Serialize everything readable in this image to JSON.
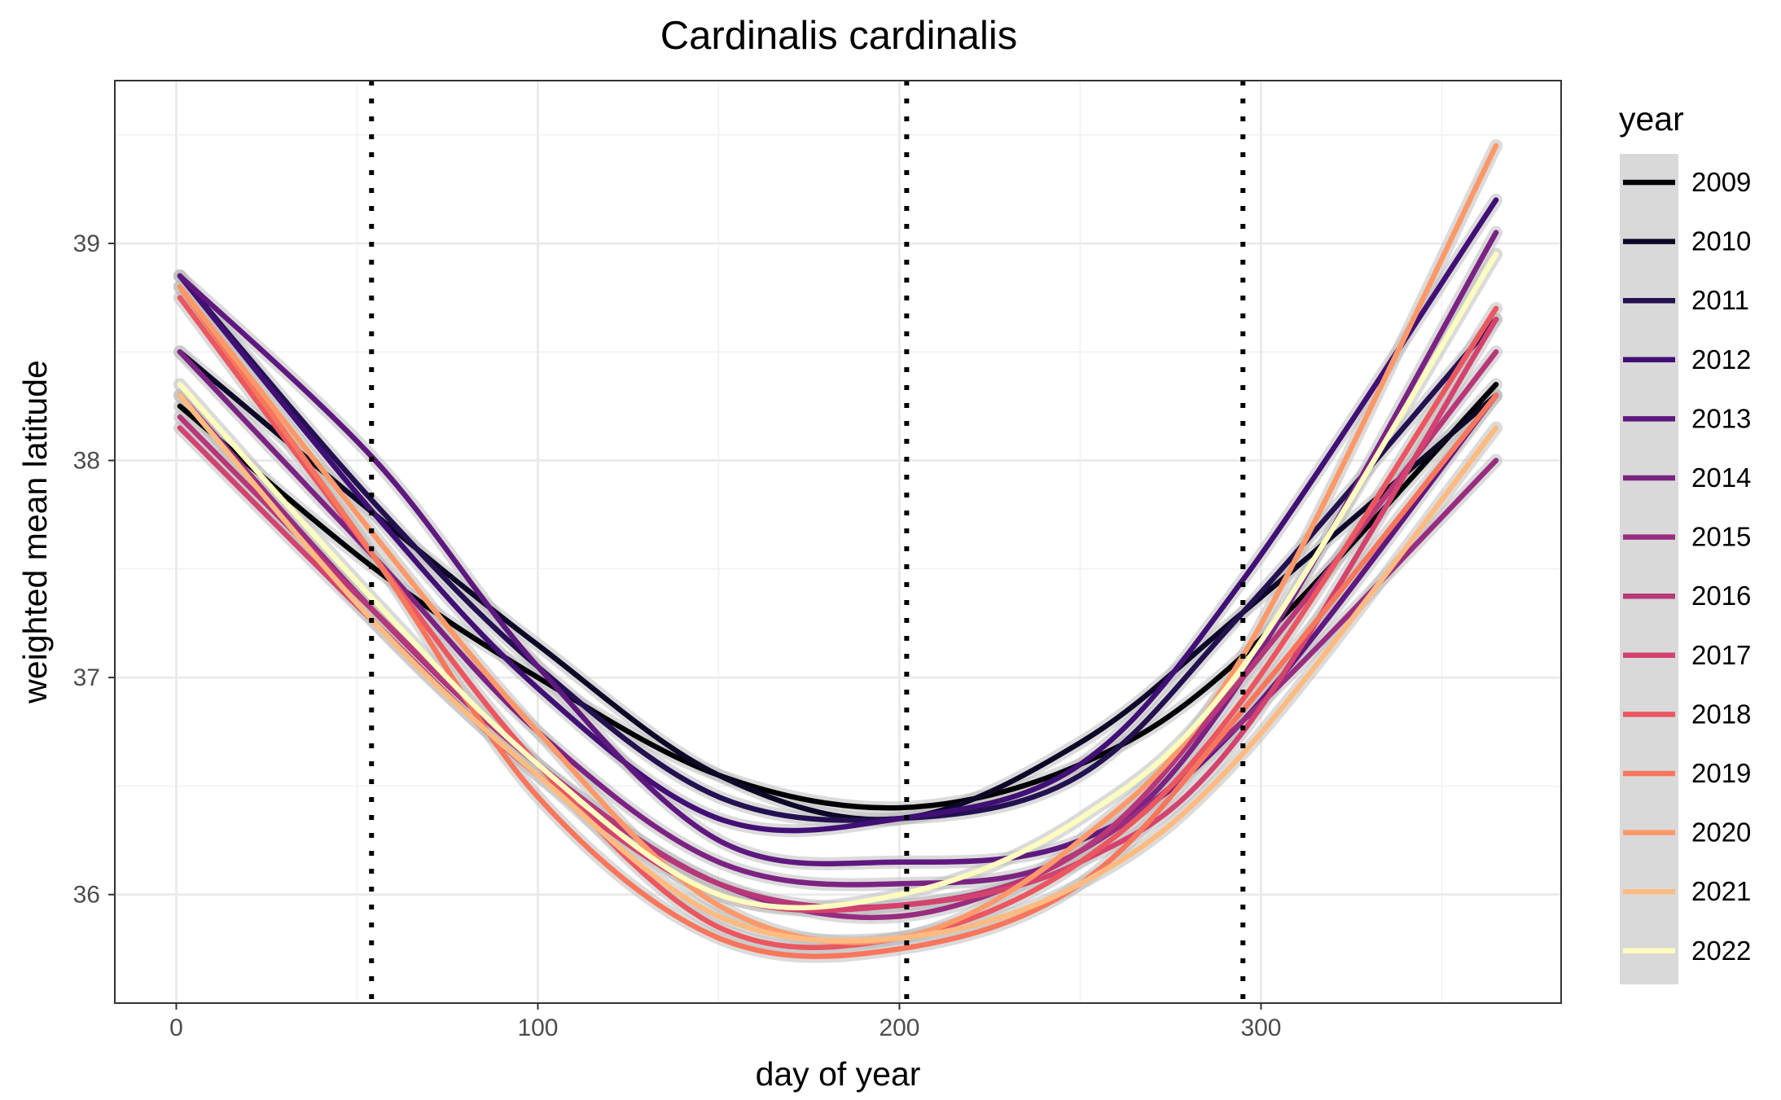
{
  "chart_data": {
    "type": "line",
    "title": "Cardinalis cardinalis",
    "xlabel": "day of year",
    "ylabel": "weighted mean latitude",
    "xlim": [
      -17,
      383
    ],
    "ylim": [
      35.5,
      39.75
    ],
    "x_ticks": [
      0,
      100,
      200,
      300
    ],
    "y_ticks": [
      36,
      37,
      38,
      39
    ],
    "grid": true,
    "confidence_band_color": "#bebebe",
    "vertical_dotted_lines_x": [
      54,
      202,
      295
    ],
    "legend": {
      "title": "year",
      "placement": "right"
    },
    "series": [
      {
        "name": "2009",
        "color": "#000004",
        "points": [
          [
            1,
            38.25
          ],
          [
            55,
            37.5
          ],
          [
            100,
            37.0
          ],
          [
            150,
            36.55
          ],
          [
            200,
            36.4
          ],
          [
            250,
            36.6
          ],
          [
            295,
            37.1
          ],
          [
            365,
            38.35
          ]
        ]
      },
      {
        "name": "2010",
        "color": "#0c0827",
        "points": [
          [
            1,
            38.5
          ],
          [
            55,
            37.75
          ],
          [
            100,
            37.15
          ],
          [
            150,
            36.55
          ],
          [
            200,
            36.35
          ],
          [
            250,
            36.7
          ],
          [
            295,
            37.3
          ],
          [
            365,
            38.3
          ]
        ]
      },
      {
        "name": "2011",
        "color": "#231151",
        "points": [
          [
            1,
            38.85
          ],
          [
            55,
            37.8
          ],
          [
            100,
            37.05
          ],
          [
            150,
            36.45
          ],
          [
            200,
            36.35
          ],
          [
            250,
            36.55
          ],
          [
            295,
            37.3
          ],
          [
            365,
            38.65
          ]
        ]
      },
      {
        "name": "2012",
        "color": "#410f75",
        "points": [
          [
            1,
            38.85
          ],
          [
            55,
            37.75
          ],
          [
            100,
            36.95
          ],
          [
            150,
            36.35
          ],
          [
            200,
            36.35
          ],
          [
            250,
            36.6
          ],
          [
            295,
            37.45
          ],
          [
            365,
            39.2
          ]
        ]
      },
      {
        "name": "2013",
        "color": "#5f187f",
        "points": [
          [
            1,
            38.85
          ],
          [
            55,
            38.0
          ],
          [
            100,
            37.05
          ],
          [
            150,
            36.25
          ],
          [
            200,
            36.15
          ],
          [
            250,
            36.25
          ],
          [
            295,
            36.8
          ],
          [
            365,
            38.3
          ]
        ]
      },
      {
        "name": "2014",
        "color": "#7b2382",
        "points": [
          [
            1,
            38.5
          ],
          [
            55,
            37.55
          ],
          [
            100,
            36.75
          ],
          [
            150,
            36.15
          ],
          [
            200,
            36.05
          ],
          [
            250,
            36.2
          ],
          [
            295,
            37.0
          ],
          [
            365,
            39.05
          ]
        ]
      },
      {
        "name": "2015",
        "color": "#982d80",
        "points": [
          [
            1,
            38.3
          ],
          [
            55,
            37.3
          ],
          [
            100,
            36.6
          ],
          [
            150,
            36.05
          ],
          [
            200,
            35.9
          ],
          [
            250,
            36.2
          ],
          [
            295,
            36.8
          ],
          [
            365,
            38.0
          ]
        ]
      },
      {
        "name": "2016",
        "color": "#b73779",
        "points": [
          [
            1,
            38.2
          ],
          [
            55,
            37.3
          ],
          [
            100,
            36.6
          ],
          [
            150,
            36.05
          ],
          [
            200,
            35.95
          ],
          [
            250,
            36.2
          ],
          [
            295,
            37.0
          ],
          [
            365,
            38.5
          ]
        ]
      },
      {
        "name": "2017",
        "color": "#d3436e",
        "points": [
          [
            1,
            38.15
          ],
          [
            55,
            37.25
          ],
          [
            100,
            36.55
          ],
          [
            150,
            36.0
          ],
          [
            200,
            35.95
          ],
          [
            250,
            36.15
          ],
          [
            295,
            36.75
          ],
          [
            365,
            38.65
          ]
        ]
      },
      {
        "name": "2018",
        "color": "#eb5760",
        "points": [
          [
            1,
            38.75
          ],
          [
            55,
            37.55
          ],
          [
            100,
            36.6
          ],
          [
            150,
            35.85
          ],
          [
            200,
            35.8
          ],
          [
            250,
            36.15
          ],
          [
            295,
            36.9
          ],
          [
            365,
            38.7
          ]
        ]
      },
      {
        "name": "2019",
        "color": "#f8765c",
        "points": [
          [
            1,
            38.8
          ],
          [
            55,
            37.55
          ],
          [
            100,
            36.45
          ],
          [
            150,
            35.8
          ],
          [
            200,
            35.75
          ],
          [
            250,
            36.05
          ],
          [
            295,
            36.85
          ],
          [
            365,
            38.3
          ]
        ]
      },
      {
        "name": "2020",
        "color": "#fd9969",
        "points": [
          [
            1,
            38.8
          ],
          [
            55,
            37.65
          ],
          [
            100,
            36.75
          ],
          [
            150,
            35.95
          ],
          [
            200,
            35.8
          ],
          [
            250,
            36.25
          ],
          [
            295,
            37.1
          ],
          [
            365,
            39.45
          ]
        ]
      },
      {
        "name": "2021",
        "color": "#febb81",
        "points": [
          [
            1,
            38.3
          ],
          [
            55,
            37.25
          ],
          [
            100,
            36.55
          ],
          [
            150,
            35.9
          ],
          [
            200,
            35.8
          ],
          [
            250,
            36.05
          ],
          [
            295,
            36.65
          ],
          [
            365,
            38.15
          ]
        ]
      },
      {
        "name": "2022",
        "color": "#fcfdbf",
        "points": [
          [
            1,
            38.35
          ],
          [
            55,
            37.35
          ],
          [
            100,
            36.6
          ],
          [
            150,
            36.0
          ],
          [
            200,
            36.0
          ],
          [
            250,
            36.35
          ],
          [
            295,
            37.05
          ],
          [
            365,
            38.95
          ]
        ]
      }
    ]
  }
}
